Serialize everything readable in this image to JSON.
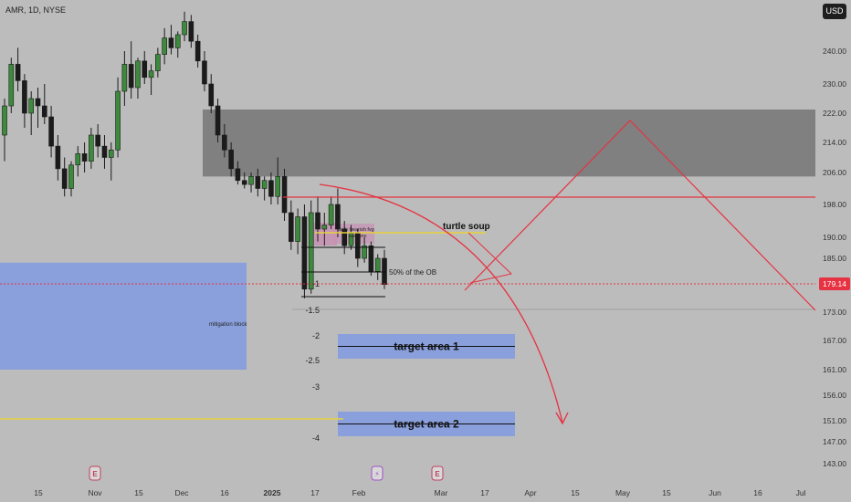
{
  "header": {
    "symbol_title": "AMR, 1D, NYSE",
    "currency": "USD"
  },
  "colors": {
    "bull": "#3c8a3c",
    "bear": "#1b1b1b",
    "supply_zone": "#808080",
    "demand_zone": "#8aa0dc",
    "accent_red": "#e63241",
    "yellow": "#e6d23c",
    "fvg": "#c890b4",
    "background": "#bcbcbc"
  },
  "chart_data": {
    "type": "candlestick",
    "title": "AMR, 1D, NYSE",
    "y_axis": {
      "ticks": [
        240.0,
        230.0,
        222.0,
        214.0,
        206.0,
        198.0,
        190.0,
        185.0,
        179.14,
        173.0,
        167.0,
        161.0,
        156.0,
        151.0,
        147.0,
        143.0
      ],
      "labels": [
        "240.00",
        "230.00",
        "222.00",
        "214.00",
        "206.00",
        "198.00",
        "190.00",
        "185.00",
        "179.14",
        "173.00",
        "167.00",
        "161.00",
        "156.00",
        "151.00",
        "147.00",
        "143.00"
      ],
      "current_price": "179.14"
    },
    "x_axis": {
      "labels": [
        "15",
        "Nov",
        "15",
        "Dec",
        "16",
        "2025",
        "17",
        "Feb",
        "Mar",
        "17",
        "Apr",
        "15",
        "May",
        "15",
        "Jun",
        "16",
        "Jul"
      ]
    },
    "event_markers": [
      "E",
      "⚡",
      "E"
    ],
    "zones": [
      {
        "name": "supply-zone",
        "range": [
          205.0,
          223.0
        ]
      },
      {
        "name": "mitigation-block",
        "label": "mitigation block",
        "range": [
          161.0,
          184.0
        ]
      },
      {
        "name": "daily-bearish-fvg",
        "label": "daily bearish fvg",
        "range": [
          188.0,
          192.0
        ]
      },
      {
        "name": "target-area-1",
        "label": "target area 1",
        "range": [
          164.0,
          167.5
        ]
      },
      {
        "name": "target-area-2",
        "label": "target area 2",
        "range": [
          147.5,
          152.0
        ]
      }
    ],
    "levels": [
      {
        "name": "red-resistance-line",
        "value": 199.5
      },
      {
        "name": "turtle-soup-line",
        "label": "turtle soup",
        "value": 191.0
      },
      {
        "name": "ob-50-line",
        "label": "50% of the OB",
        "value": 182.5
      },
      {
        "name": "yellow-low-line",
        "value": 151.0
      }
    ],
    "fib_labels": [
      "-1",
      "-1.5",
      "-2",
      "-2.5",
      "-3",
      "-4"
    ],
    "small_label": "daily BRK",
    "candles": [
      [
        216,
        226,
        209,
        224
      ],
      [
        224,
        238,
        222,
        236
      ],
      [
        236,
        241,
        228,
        231
      ],
      [
        231,
        233,
        218,
        222
      ],
      [
        222,
        228,
        216,
        226
      ],
      [
        226,
        229,
        218,
        224
      ],
      [
        224,
        230,
        219,
        221
      ],
      [
        221,
        224,
        210,
        213
      ],
      [
        213,
        216,
        204,
        207
      ],
      [
        207,
        210,
        200,
        202
      ],
      [
        202,
        209,
        200,
        208
      ],
      [
        208,
        213,
        205,
        211
      ],
      [
        211,
        214,
        206,
        209
      ],
      [
        209,
        218,
        207,
        216
      ],
      [
        216,
        219,
        210,
        213
      ],
      [
        213,
        216,
        207,
        210
      ],
      [
        210,
        214,
        204,
        212
      ],
      [
        212,
        232,
        210,
        228
      ],
      [
        228,
        240,
        224,
        236
      ],
      [
        236,
        243,
        226,
        229
      ],
      [
        229,
        238,
        226,
        237
      ],
      [
        237,
        240,
        230,
        232
      ],
      [
        232,
        236,
        227,
        234
      ],
      [
        234,
        241,
        232,
        239
      ],
      [
        239,
        247,
        236,
        244
      ],
      [
        244,
        248,
        239,
        241
      ],
      [
        241,
        246,
        238,
        245
      ],
      [
        245,
        252,
        243,
        249
      ],
      [
        249,
        251,
        241,
        243
      ],
      [
        243,
        245,
        235,
        237
      ],
      [
        237,
        240,
        228,
        230
      ],
      [
        230,
        233,
        222,
        224
      ],
      [
        224,
        226,
        214,
        216
      ],
      [
        216,
        219,
        210,
        212
      ],
      [
        212,
        214,
        205,
        207
      ],
      [
        207,
        209,
        203,
        204
      ],
      [
        204,
        206,
        202,
        203
      ],
      [
        203,
        206,
        201,
        205
      ],
      [
        205,
        207,
        200,
        202
      ],
      [
        202,
        205,
        199,
        204
      ],
      [
        204,
        206,
        198,
        200
      ],
      [
        200,
        210,
        198,
        205
      ],
      [
        205,
        207,
        194,
        196
      ],
      [
        196,
        199,
        187,
        189
      ],
      [
        189,
        197,
        186,
        195
      ],
      [
        195,
        198,
        176,
        178
      ],
      [
        178,
        199,
        177,
        196
      ],
      [
        196,
        200,
        189,
        192
      ],
      [
        192,
        196,
        188,
        193
      ],
      [
        193,
        200,
        192,
        198
      ],
      [
        198,
        202,
        190,
        192
      ],
      [
        192,
        194,
        186,
        188
      ],
      [
        188,
        193,
        187,
        191
      ],
      [
        191,
        192,
        183,
        185
      ],
      [
        185,
        190,
        184,
        188
      ],
      [
        188,
        189,
        181,
        182
      ],
      [
        182,
        186,
        180,
        185
      ],
      [
        185,
        187,
        178,
        179
      ]
    ]
  }
}
